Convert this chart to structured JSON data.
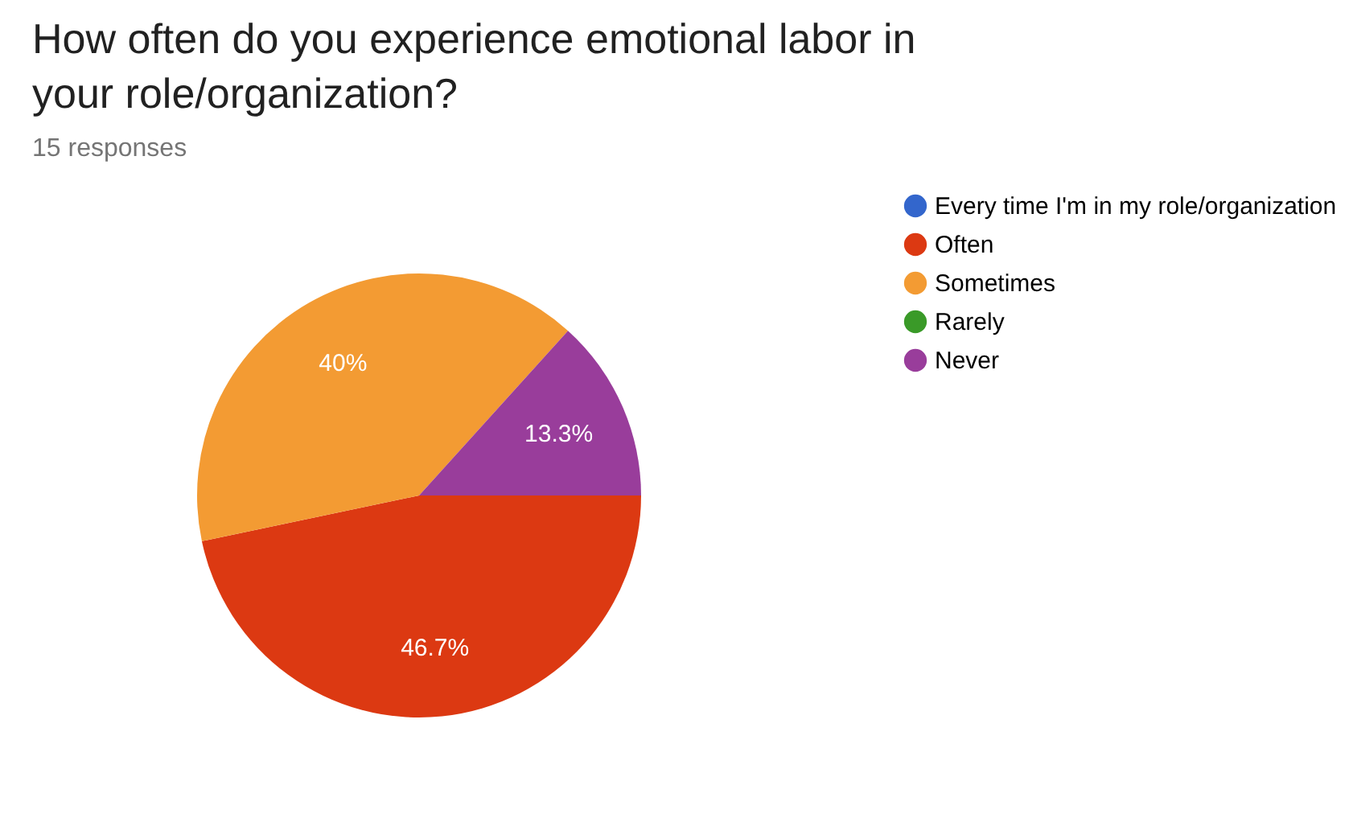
{
  "chart_data": {
    "type": "pie",
    "title": "How often do you experience emotional labor in your role/organization?",
    "subtitle": "15 responses",
    "categories": [
      "Every time I'm in my role/organization",
      "Often",
      "Sometimes",
      "Rarely",
      "Never"
    ],
    "values": [
      0,
      46.7,
      40,
      0,
      13.3
    ],
    "colors": [
      "#3366cc",
      "#dc3912",
      "#f39b33",
      "#3a9a28",
      "#993d9b"
    ],
    "value_labels": [
      null,
      "46.7%",
      "40%",
      null,
      "13.3%"
    ],
    "legend": "right"
  }
}
